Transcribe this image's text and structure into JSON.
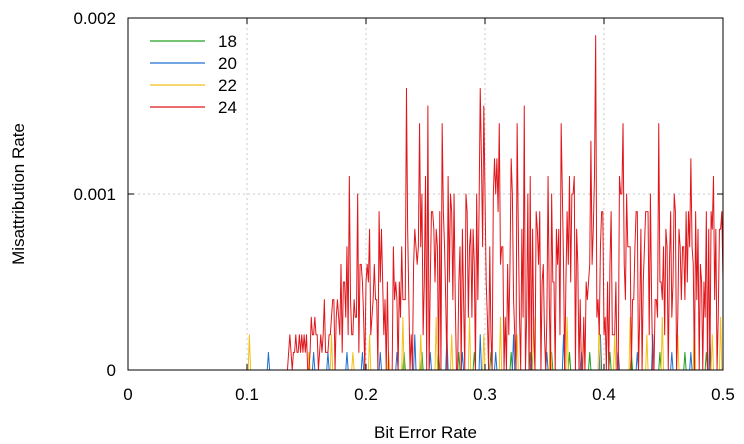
{
  "chart_data": {
    "type": "line",
    "title": "",
    "xlabel": "Bit Error Rate",
    "ylabel": "Misattribution Rate",
    "xlim": [
      0,
      0.5
    ],
    "ylim": [
      0,
      0.002
    ],
    "x_ticks": [
      0,
      0.1,
      0.2,
      0.3,
      0.4,
      0.5
    ],
    "x_tick_labels": [
      "0",
      "0.1",
      "0.2",
      "0.3",
      "0.4",
      "0.5"
    ],
    "y_ticks": [
      0,
      0.001,
      0.002
    ],
    "y_tick_labels": [
      "0",
      "0.001",
      "0.002"
    ],
    "grid": true,
    "legend_position": "top-left",
    "x_step": 0.001,
    "series": [
      {
        "name": "18",
        "color": "#22a022",
        "kind": "sparse",
        "points": [
          [
            0.232,
            0.0001
          ],
          [
            0.247,
            0.0001
          ],
          [
            0.261,
            0.0001
          ],
          [
            0.278,
            0.0001
          ],
          [
            0.291,
            0.0001
          ],
          [
            0.305,
            0.0001
          ],
          [
            0.322,
            0.0001
          ],
          [
            0.338,
            0.0001
          ],
          [
            0.356,
            0.0001
          ],
          [
            0.371,
            0.0001
          ],
          [
            0.388,
            0.0001
          ],
          [
            0.405,
            0.0001
          ],
          [
            0.423,
            0.0001
          ],
          [
            0.447,
            0.0001
          ],
          [
            0.468,
            0.0001
          ],
          [
            0.486,
            0.0001
          ]
        ]
      },
      {
        "name": "20",
        "color": "#1f6fd0",
        "kind": "sparse",
        "points": [
          [
            0.118,
            0.0001
          ],
          [
            0.156,
            0.0001
          ],
          [
            0.168,
            0.0001
          ],
          [
            0.184,
            0.0001
          ],
          [
            0.197,
            0.0001
          ],
          [
            0.212,
            0.0001
          ],
          [
            0.226,
            0.0001
          ],
          [
            0.241,
            0.0002
          ],
          [
            0.254,
            0.0001
          ],
          [
            0.268,
            0.0002
          ],
          [
            0.281,
            0.0001
          ],
          [
            0.296,
            0.0002
          ],
          [
            0.309,
            0.0001
          ],
          [
            0.324,
            0.0002
          ],
          [
            0.339,
            0.0001
          ],
          [
            0.352,
            0.0001
          ],
          [
            0.366,
            0.0002
          ],
          [
            0.381,
            0.0001
          ],
          [
            0.397,
            0.0002
          ],
          [
            0.412,
            0.0001
          ],
          [
            0.428,
            0.0001
          ],
          [
            0.441,
            0.0002
          ],
          [
            0.457,
            0.0001
          ],
          [
            0.473,
            0.0001
          ],
          [
            0.489,
            0.0002
          ]
        ]
      },
      {
        "name": "22",
        "color": "#f2c11a",
        "kind": "sparse",
        "points": [
          [
            0.102,
            0.0002
          ],
          [
            0.152,
            0.0001
          ],
          [
            0.171,
            0.0002
          ],
          [
            0.189,
            0.0001
          ],
          [
            0.203,
            0.0002
          ],
          [
            0.219,
            0.0001
          ],
          [
            0.231,
            0.0003
          ],
          [
            0.246,
            0.0002
          ],
          [
            0.259,
            0.0003
          ],
          [
            0.272,
            0.0002
          ],
          [
            0.287,
            0.0003
          ],
          [
            0.299,
            0.0002
          ],
          [
            0.313,
            0.0003
          ],
          [
            0.327,
            0.0002
          ],
          [
            0.341,
            0.0003
          ],
          [
            0.355,
            0.0002
          ],
          [
            0.369,
            0.0003
          ],
          [
            0.383,
            0.0002
          ],
          [
            0.396,
            0.0003
          ],
          [
            0.409,
            0.0002
          ],
          [
            0.422,
            0.0003
          ],
          [
            0.436,
            0.0002
          ],
          [
            0.449,
            0.0003
          ],
          [
            0.462,
            0.0002
          ],
          [
            0.476,
            0.0003
          ],
          [
            0.491,
            0.0002
          ],
          [
            0.498,
            0.0003
          ]
        ]
      },
      {
        "name": "24",
        "color": "#e0161b",
        "kind": "noisy",
        "onset": 0.135,
        "envelope": [
          [
            0.135,
            0.0001
          ],
          [
            0.16,
            0.0002
          ],
          [
            0.18,
            0.0004
          ],
          [
            0.2,
            0.0005
          ],
          [
            0.22,
            0.0006
          ],
          [
            0.25,
            0.0007
          ],
          [
            0.3,
            0.0008
          ],
          [
            0.35,
            0.0007
          ],
          [
            0.4,
            0.0007
          ],
          [
            0.45,
            0.0006
          ],
          [
            0.5,
            0.0006
          ]
        ],
        "peaks": [
          [
            0.186,
            0.0011
          ],
          [
            0.193,
            0.001
          ],
          [
            0.234,
            0.0016
          ],
          [
            0.245,
            0.0014
          ],
          [
            0.252,
            0.0015
          ],
          [
            0.264,
            0.0014
          ],
          [
            0.296,
            0.0016
          ],
          [
            0.299,
            0.0015
          ],
          [
            0.312,
            0.0014
          ],
          [
            0.327,
            0.0014
          ],
          [
            0.333,
            0.0015
          ],
          [
            0.364,
            0.0014
          ],
          [
            0.389,
            0.0013
          ],
          [
            0.393,
            0.0019
          ],
          [
            0.416,
            0.0014
          ],
          [
            0.446,
            0.0014
          ],
          [
            0.473,
            0.0012
          ],
          [
            0.492,
            0.0011
          ]
        ]
      }
    ]
  }
}
